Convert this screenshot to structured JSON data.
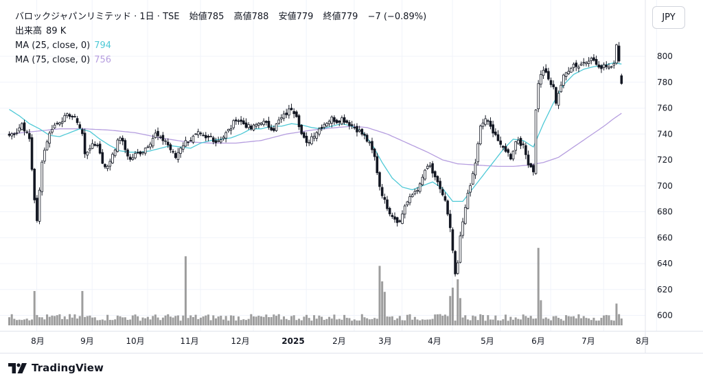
{
  "header": {
    "title": "バロックジャパンリミテッド · 1日 · TSE",
    "ohlc": [
      {
        "label": "始値",
        "value": "785"
      },
      {
        "label": "高値",
        "value": "788"
      },
      {
        "label": "安値",
        "value": "779"
      },
      {
        "label": "終値",
        "value": "779"
      }
    ],
    "change": "−7 (−0.89%)",
    "volume_label": "出来高",
    "volume_value": "89 K",
    "ma1_label": "MA (25, close, 0)",
    "ma1_value": "794",
    "ma2_label": "MA (75, close, 0)",
    "ma2_value": "756"
  },
  "currency_button": "JPY",
  "brand": "TradingView",
  "colors": {
    "ma25": "#4ec9d6",
    "ma75": "#b59ddf",
    "candle": "#131722",
    "volume": "#8c8c8c",
    "grid": "#f0f3fa",
    "change": "#131722"
  },
  "chart_data": {
    "type": "candlestick",
    "x_labels": [
      "8月",
      "9月",
      "10月",
      "11月",
      "12月",
      "2025",
      "2月",
      "3月",
      "4月",
      "5月",
      "6月",
      "7月",
      "8月"
    ],
    "y_ticks": [
      600,
      620,
      640,
      660,
      680,
      700,
      720,
      740,
      760,
      780,
      800
    ],
    "ylim": [
      591,
      816
    ],
    "trading_days": 244,
    "month_start_index": [
      12,
      34,
      56,
      77,
      98,
      119,
      138,
      157,
      177,
      196,
      216,
      237,
      258
    ],
    "anchors": [
      [
        0,
        739
      ],
      [
        3,
        742
      ],
      [
        5,
        748
      ],
      [
        8,
        736
      ],
      [
        10,
        690
      ],
      [
        11,
        672
      ],
      [
        13,
        720
      ],
      [
        15,
        735
      ],
      [
        17,
        745
      ],
      [
        20,
        750
      ],
      [
        24,
        755
      ],
      [
        27,
        750
      ],
      [
        29,
        740
      ],
      [
        30,
        724
      ],
      [
        32,
        730
      ],
      [
        35,
        732
      ],
      [
        37,
        718
      ],
      [
        39,
        714
      ],
      [
        41,
        725
      ],
      [
        44,
        738
      ],
      [
        46,
        728
      ],
      [
        48,
        720
      ],
      [
        50,
        724
      ],
      [
        53,
        727
      ],
      [
        56,
        734
      ],
      [
        58,
        740
      ],
      [
        60,
        736
      ],
      [
        62,
        735
      ],
      [
        64,
        728
      ],
      [
        66,
        722
      ],
      [
        68,
        730
      ],
      [
        70,
        734
      ],
      [
        72,
        736
      ],
      [
        75,
        740
      ],
      [
        78,
        736
      ],
      [
        80,
        738
      ],
      [
        82,
        734
      ],
      [
        85,
        738
      ],
      [
        88,
        745
      ],
      [
        90,
        752
      ],
      [
        93,
        748
      ],
      [
        96,
        744
      ],
      [
        98,
        747
      ],
      [
        100,
        750
      ],
      [
        103,
        746
      ],
      [
        105,
        744
      ],
      [
        107,
        750
      ],
      [
        110,
        756
      ],
      [
        112,
        760
      ],
      [
        114,
        755
      ],
      [
        116,
        740
      ],
      [
        118,
        732
      ],
      [
        120,
        738
      ],
      [
        122,
        742
      ],
      [
        125,
        748
      ],
      [
        128,
        752
      ],
      [
        130,
        750
      ],
      [
        132,
        752
      ],
      [
        135,
        748
      ],
      [
        137,
        745
      ],
      [
        139,
        742
      ],
      [
        141,
        738
      ],
      [
        143,
        732
      ],
      [
        145,
        722
      ],
      [
        147,
        700
      ],
      [
        149,
        688
      ],
      [
        151,
        680
      ],
      [
        153,
        675
      ],
      [
        155,
        672
      ],
      [
        157,
        685
      ],
      [
        159,
        690
      ],
      [
        161,
        696
      ],
      [
        163,
        700
      ],
      [
        165,
        712
      ],
      [
        167,
        715
      ],
      [
        169,
        705
      ],
      [
        171,
        698
      ],
      [
        173,
        688
      ],
      [
        175,
        666
      ],
      [
        176,
        650
      ],
      [
        177,
        630
      ],
      [
        178,
        640
      ],
      [
        179,
        660
      ],
      [
        181,
        685
      ],
      [
        183,
        700
      ],
      [
        185,
        718
      ],
      [
        187,
        745
      ],
      [
        189,
        752
      ],
      [
        191,
        745
      ],
      [
        193,
        740
      ],
      [
        195,
        730
      ],
      [
        197,
        728
      ],
      [
        199,
        722
      ],
      [
        201,
        734
      ],
      [
        202,
        736
      ],
      [
        204,
        730
      ],
      [
        206,
        718
      ],
      [
        208,
        712
      ],
      [
        209,
        758
      ],
      [
        210,
        780
      ],
      [
        212,
        790
      ],
      [
        214,
        782
      ],
      [
        216,
        775
      ],
      [
        217,
        765
      ],
      [
        218,
        772
      ],
      [
        220,
        784
      ],
      [
        222,
        790
      ],
      [
        224,
        794
      ],
      [
        226,
        792
      ],
      [
        228,
        796
      ],
      [
        230,
        798
      ],
      [
        232,
        797
      ],
      [
        234,
        790
      ],
      [
        236,
        794
      ],
      [
        238,
        792
      ],
      [
        240,
        796
      ],
      [
        241,
        808
      ],
      [
        242,
        795
      ],
      [
        243,
        779
      ]
    ],
    "ma25_anchors": [
      [
        0,
        759
      ],
      [
        4,
        754
      ],
      [
        8,
        748
      ],
      [
        12,
        744
      ],
      [
        16,
        739
      ],
      [
        20,
        738
      ],
      [
        24,
        741
      ],
      [
        28,
        744
      ],
      [
        32,
        742
      ],
      [
        36,
        736
      ],
      [
        40,
        731
      ],
      [
        44,
        727
      ],
      [
        48,
        726
      ],
      [
        52,
        726
      ],
      [
        56,
        727
      ],
      [
        60,
        729
      ],
      [
        64,
        731
      ],
      [
        68,
        730
      ],
      [
        72,
        729
      ],
      [
        76,
        733
      ],
      [
        80,
        735
      ],
      [
        84,
        736
      ],
      [
        88,
        737
      ],
      [
        92,
        740
      ],
      [
        96,
        744
      ],
      [
        100,
        744
      ],
      [
        104,
        746
      ],
      [
        108,
        746
      ],
      [
        112,
        748
      ],
      [
        116,
        747
      ],
      [
        120,
        745
      ],
      [
        124,
        744
      ],
      [
        128,
        746
      ],
      [
        132,
        748
      ],
      [
        136,
        746
      ],
      [
        140,
        742
      ],
      [
        144,
        732
      ],
      [
        148,
        718
      ],
      [
        152,
        706
      ],
      [
        156,
        699
      ],
      [
        160,
        697
      ],
      [
        164,
        700
      ],
      [
        168,
        703
      ],
      [
        172,
        698
      ],
      [
        176,
        688
      ],
      [
        180,
        688
      ],
      [
        184,
        698
      ],
      [
        188,
        708
      ],
      [
        192,
        718
      ],
      [
        196,
        728
      ],
      [
        200,
        736
      ],
      [
        204,
        735
      ],
      [
        208,
        730
      ],
      [
        212,
        748
      ],
      [
        216,
        764
      ],
      [
        220,
        778
      ],
      [
        224,
        786
      ],
      [
        228,
        790
      ],
      [
        232,
        792
      ],
      [
        236,
        793
      ],
      [
        240,
        795
      ],
      [
        243,
        794
      ]
    ],
    "ma75_anchors": [
      [
        0,
        740
      ],
      [
        10,
        742
      ],
      [
        20,
        744
      ],
      [
        30,
        744
      ],
      [
        40,
        743
      ],
      [
        50,
        741
      ],
      [
        60,
        737
      ],
      [
        70,
        734
      ],
      [
        80,
        733
      ],
      [
        90,
        733
      ],
      [
        100,
        735
      ],
      [
        110,
        740
      ],
      [
        120,
        743
      ],
      [
        130,
        745
      ],
      [
        136,
        746
      ],
      [
        142,
        745
      ],
      [
        150,
        740
      ],
      [
        158,
        733
      ],
      [
        166,
        726
      ],
      [
        172,
        720
      ],
      [
        178,
        717
      ],
      [
        186,
        716
      ],
      [
        194,
        715
      ],
      [
        200,
        715
      ],
      [
        206,
        716
      ],
      [
        212,
        718
      ],
      [
        218,
        722
      ],
      [
        224,
        730
      ],
      [
        230,
        738
      ],
      [
        236,
        746
      ],
      [
        240,
        752
      ],
      [
        243,
        756
      ]
    ],
    "volume_spikes": [
      [
        10,
        8.2
      ],
      [
        29,
        8.2
      ],
      [
        70,
        16.5
      ],
      [
        147,
        14.2
      ],
      [
        148,
        10.5
      ],
      [
        149,
        8
      ],
      [
        175,
        7
      ],
      [
        176,
        9
      ],
      [
        178,
        11
      ],
      [
        179,
        6.5
      ],
      [
        210,
        18.5
      ],
      [
        211,
        6
      ],
      [
        241,
        5.2
      ]
    ],
    "volume_units": "x10K",
    "last": {
      "open": 785,
      "high": 788,
      "low": 779,
      "close": 779,
      "change": -7,
      "change_pct": -0.89,
      "volume_k": 89
    }
  }
}
